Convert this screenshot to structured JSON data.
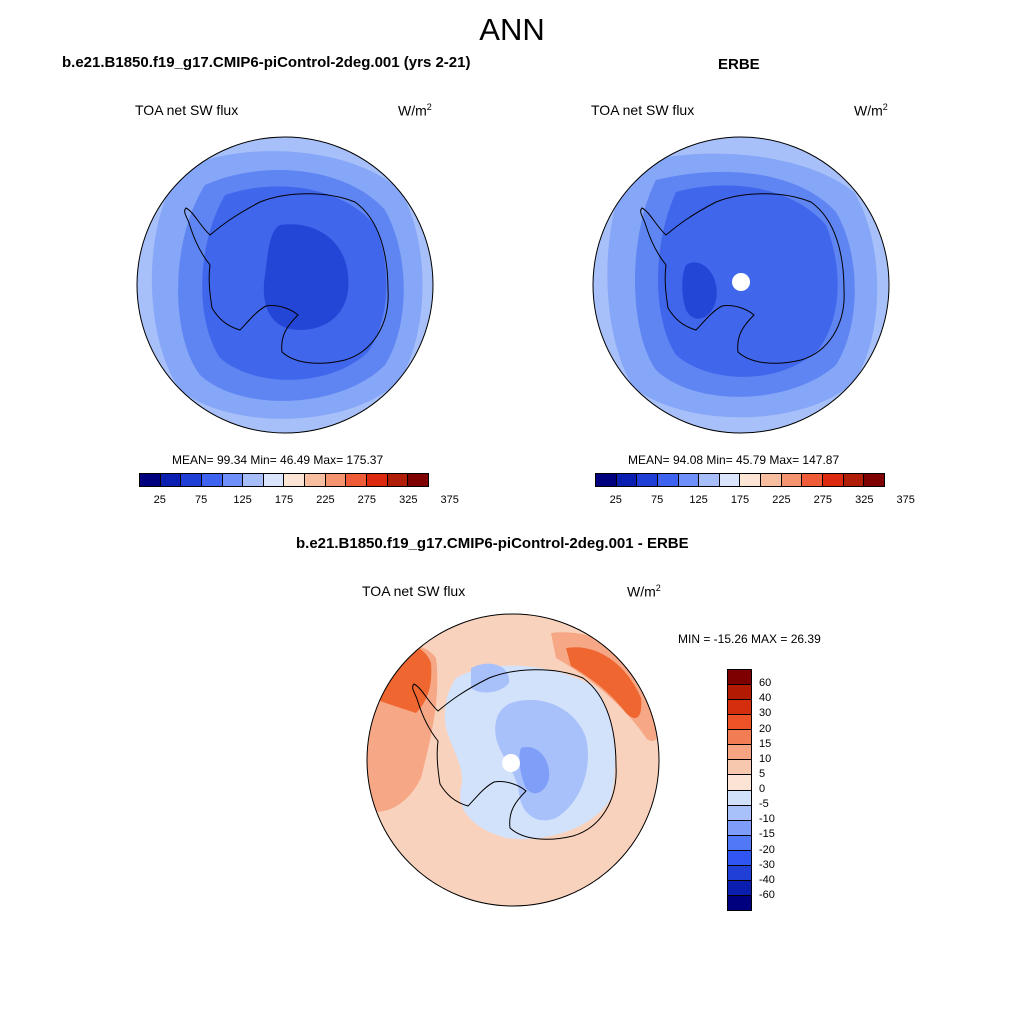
{
  "season": "ANN",
  "colors": {
    "seq": [
      "#00007f",
      "#0a1fb0",
      "#1f3fd6",
      "#3d63f0",
      "#6e8ff7",
      "#a6bdf9",
      "#d8e5fc",
      "#fde5d6",
      "#f9bd9f",
      "#f4946f",
      "#ee5c38",
      "#dc2a10",
      "#b01e08",
      "#7f0000"
    ],
    "diff": [
      "#00007f",
      "#0a1fb0",
      "#1f3fd6",
      "#2f55f2",
      "#5179f7",
      "#7d9df8",
      "#a9c1fa",
      "#d2e1fb",
      "#fbe4d5",
      "#f8c8ae",
      "#f6a482",
      "#f27d54",
      "#ee5328",
      "#d42e0e",
      "#b21a04",
      "#7f0000"
    ],
    "fills": {
      "seq_l1": "#a8c0f9",
      "seq_l2": "#86a6f7",
      "seq_l3": "#5f85f3",
      "seq_l4": "#4066ec",
      "seq_l5": "#2446d6",
      "diff_base": "#f9d2bd",
      "diff_warm": "#f6a785",
      "diff_hot": "#ef6630",
      "diff_cool": "#d3e2fb",
      "diff_cool2": "#a9c1fa",
      "diff_cool3": "#7e9ef8"
    }
  },
  "panels": {
    "model": {
      "title": "b.e21.B1850.f19_g17.CMIP6-piControl-2deg.001 (yrs 2-21)",
      "var": "TOA net SW flux",
      "units": "W/m",
      "units_sup": "2",
      "stats": "MEAN=  99.34  Min=  46.49  Max= 175.37"
    },
    "obs": {
      "title": "ERBE",
      "var": "TOA net SW flux",
      "units": "W/m",
      "units_sup": "2",
      "stats": "MEAN=  94.08  Min=  45.79  Max= 147.87"
    },
    "diff": {
      "title": "b.e21.B1850.f19_g17.CMIP6-piControl-2deg.001 - ERBE",
      "var": "TOA net SW flux",
      "units": "W/m",
      "units_sup": "2",
      "stats": "MIN = -15.26 MAX =  26.39"
    }
  },
  "colorbar_seq": {
    "ticks": [
      "25",
      "75",
      "125",
      "175",
      "225",
      "275",
      "325",
      "375"
    ]
  },
  "colorbar_diff": {
    "ticks_top_to_bottom": [
      "60",
      "40",
      "30",
      "20",
      "15",
      "10",
      "5",
      "0",
      "-5",
      "-10",
      "-15",
      "-20",
      "-30",
      "-40",
      "-60"
    ]
  }
}
